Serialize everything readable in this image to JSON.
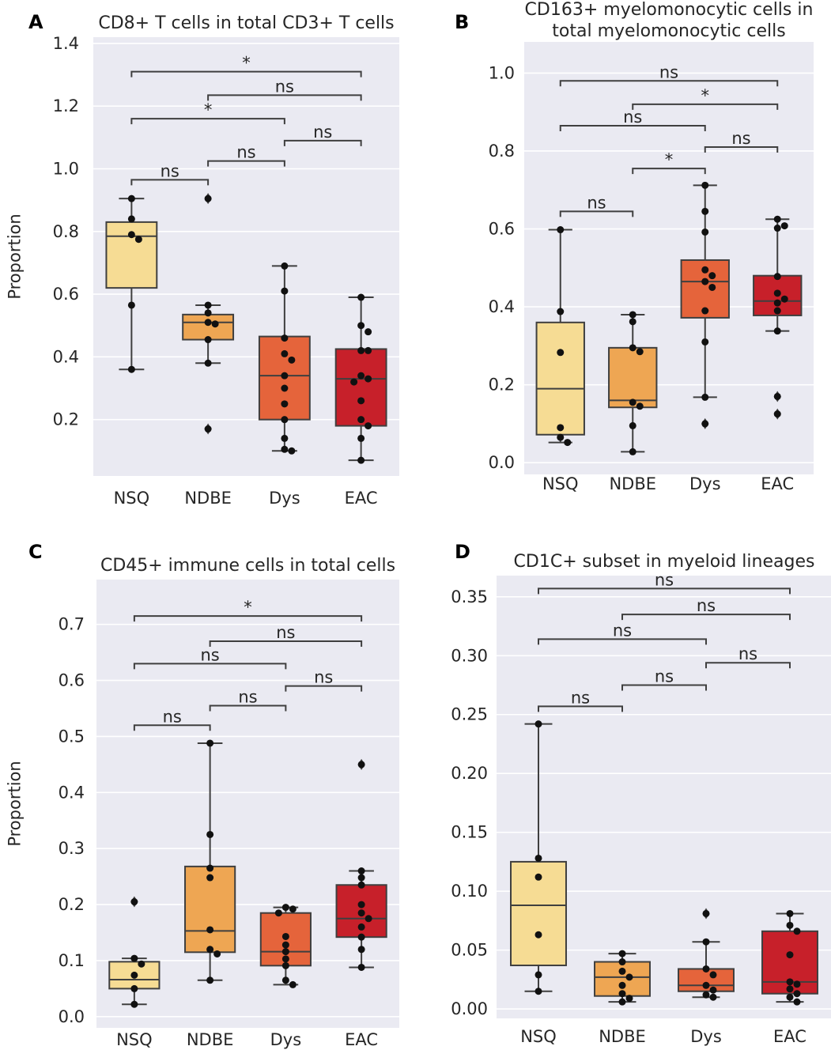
{
  "chart_data": [
    {
      "panel": "A",
      "type": "box",
      "title": [
        "CD8+ T cells in total CD3+ T cells"
      ],
      "ylabel": "Proportion",
      "xlabel": "",
      "ylim": [
        0.02,
        1.42
      ],
      "yticks": [
        0.2,
        0.4,
        0.6,
        0.8,
        1.0,
        1.2,
        1.4
      ],
      "ytick_labels": [
        "0.2",
        "0.4",
        "0.6",
        "0.8",
        "1.0",
        "1.2",
        "1.4"
      ],
      "categories": [
        "NSQ",
        "NDBE",
        "Dys",
        "EAC"
      ],
      "colors": [
        "#f6dc94",
        "#eea653",
        "#e5643b",
        "#c7202a"
      ],
      "boxes": [
        {
          "q1": 0.62,
          "median": 0.785,
          "q3": 0.83,
          "whislo": 0.36,
          "whishi": 0.905,
          "fliers": []
        },
        {
          "q1": 0.455,
          "median": 0.51,
          "q3": 0.535,
          "whislo": 0.38,
          "whishi": 0.565,
          "fliers": [
            0.905,
            0.17
          ]
        },
        {
          "q1": 0.2,
          "median": 0.34,
          "q3": 0.465,
          "whislo": 0.1,
          "whishi": 0.69,
          "fliers": []
        },
        {
          "q1": 0.18,
          "median": 0.33,
          "q3": 0.425,
          "whislo": 0.07,
          "whishi": 0.59,
          "fliers": []
        }
      ],
      "points": [
        [
          0.905,
          0.84,
          0.79,
          0.775,
          0.565,
          0.36
        ],
        [
          0.905,
          0.565,
          0.54,
          0.51,
          0.505,
          0.455,
          0.38,
          0.17
        ],
        [
          0.69,
          0.61,
          0.46,
          0.41,
          0.39,
          0.34,
          0.3,
          0.25,
          0.2,
          0.14,
          0.105,
          0.1
        ],
        [
          0.59,
          0.5,
          0.48,
          0.42,
          0.42,
          0.34,
          0.33,
          0.32,
          0.26,
          0.2,
          0.18,
          0.14,
          0.07
        ]
      ],
      "annotations": [
        {
          "from": 0,
          "to": 1,
          "y": 0.965,
          "label": "ns"
        },
        {
          "from": 1,
          "to": 2,
          "y": 1.025,
          "label": "ns"
        },
        {
          "from": 2,
          "to": 3,
          "y": 1.09,
          "label": "ns"
        },
        {
          "from": 0,
          "to": 2,
          "y": 1.16,
          "label": "*"
        },
        {
          "from": 1,
          "to": 3,
          "y": 1.235,
          "label": "ns"
        },
        {
          "from": 0,
          "to": 3,
          "y": 1.31,
          "label": "*"
        }
      ]
    },
    {
      "panel": "B",
      "type": "box",
      "title": [
        "CD163+ myelomonocytic cells in",
        "total myelomonocytic cells"
      ],
      "ylabel": "",
      "xlabel": "",
      "ylim": [
        -0.03,
        1.08
      ],
      "yticks": [
        0.0,
        0.2,
        0.4,
        0.6,
        0.8,
        1.0
      ],
      "ytick_labels": [
        "0.0",
        "0.2",
        "0.4",
        "0.6",
        "0.8",
        "1.0"
      ],
      "categories": [
        "NSQ",
        "NDBE",
        "Dys",
        "EAC"
      ],
      "colors": [
        "#f6dc94",
        "#eea653",
        "#e5643b",
        "#c7202a"
      ],
      "boxes": [
        {
          "q1": 0.072,
          "median": 0.19,
          "q3": 0.36,
          "whislo": 0.052,
          "whishi": 0.598,
          "fliers": []
        },
        {
          "q1": 0.142,
          "median": 0.16,
          "q3": 0.295,
          "whislo": 0.028,
          "whishi": 0.38,
          "fliers": []
        },
        {
          "q1": 0.372,
          "median": 0.465,
          "q3": 0.52,
          "whislo": 0.168,
          "whishi": 0.712,
          "fliers": [
            0.1
          ]
        },
        {
          "q1": 0.378,
          "median": 0.415,
          "q3": 0.48,
          "whislo": 0.338,
          "whishi": 0.625,
          "fliers": [
            0.17,
            0.125
          ]
        }
      ],
      "points": [
        [
          0.598,
          0.388,
          0.283,
          0.09,
          0.065,
          0.052
        ],
        [
          0.38,
          0.362,
          0.295,
          0.285,
          0.155,
          0.145,
          0.095,
          0.028
        ],
        [
          0.712,
          0.645,
          0.592,
          0.495,
          0.48,
          0.465,
          0.45,
          0.39,
          0.31,
          0.168,
          0.1
        ],
        [
          0.625,
          0.608,
          0.602,
          0.478,
          0.435,
          0.42,
          0.41,
          0.39,
          0.338,
          0.17,
          0.125
        ]
      ],
      "annotations": [
        {
          "from": 0,
          "to": 1,
          "y": 0.645,
          "label": "ns"
        },
        {
          "from": 1,
          "to": 2,
          "y": 0.755,
          "label": "*"
        },
        {
          "from": 2,
          "to": 3,
          "y": 0.81,
          "label": "ns"
        },
        {
          "from": 0,
          "to": 2,
          "y": 0.865,
          "label": "ns"
        },
        {
          "from": 1,
          "to": 3,
          "y": 0.92,
          "label": "*"
        },
        {
          "from": 0,
          "to": 3,
          "y": 0.98,
          "label": "ns"
        }
      ]
    },
    {
      "panel": "C",
      "type": "box",
      "title": [
        "CD45+ immune cells in total cells"
      ],
      "ylabel": "Proportion",
      "xlabel": "",
      "ylim": [
        -0.02,
        0.78
      ],
      "yticks": [
        0.0,
        0.1,
        0.2,
        0.3,
        0.4,
        0.5,
        0.6,
        0.7
      ],
      "ytick_labels": [
        "0.0",
        "0.1",
        "0.2",
        "0.3",
        "0.4",
        "0.5",
        "0.6",
        "0.7"
      ],
      "categories": [
        "NSQ",
        "NDBE",
        "Dys",
        "EAC"
      ],
      "colors": [
        "#f6dc94",
        "#eea653",
        "#e5643b",
        "#c7202a"
      ],
      "boxes": [
        {
          "q1": 0.05,
          "median": 0.066,
          "q3": 0.098,
          "whislo": 0.022,
          "whishi": 0.104,
          "fliers": [
            0.205
          ]
        },
        {
          "q1": 0.115,
          "median": 0.153,
          "q3": 0.268,
          "whislo": 0.065,
          "whishi": 0.488,
          "fliers": []
        },
        {
          "q1": 0.091,
          "median": 0.116,
          "q3": 0.185,
          "whislo": 0.057,
          "whishi": 0.195,
          "fliers": []
        },
        {
          "q1": 0.142,
          "median": 0.175,
          "q3": 0.235,
          "whislo": 0.088,
          "whishi": 0.26,
          "fliers": [
            0.45
          ]
        }
      ],
      "points": [
        [
          0.205,
          0.104,
          0.094,
          0.074,
          0.05,
          0.022
        ],
        [
          0.488,
          0.325,
          0.265,
          0.248,
          0.155,
          0.12,
          0.112,
          0.065
        ],
        [
          0.195,
          0.192,
          0.185,
          0.143,
          0.128,
          0.116,
          0.103,
          0.091,
          0.065,
          0.057
        ],
        [
          0.45,
          0.26,
          0.248,
          0.235,
          0.2,
          0.185,
          0.175,
          0.16,
          0.142,
          0.12,
          0.088
        ]
      ],
      "annotations": [
        {
          "from": 0,
          "to": 1,
          "y": 0.52,
          "label": "ns"
        },
        {
          "from": 1,
          "to": 2,
          "y": 0.555,
          "label": "ns"
        },
        {
          "from": 2,
          "to": 3,
          "y": 0.59,
          "label": "ns"
        },
        {
          "from": 0,
          "to": 2,
          "y": 0.63,
          "label": "ns"
        },
        {
          "from": 1,
          "to": 3,
          "y": 0.67,
          "label": "ns"
        },
        {
          "from": 0,
          "to": 3,
          "y": 0.715,
          "label": "*"
        }
      ]
    },
    {
      "panel": "D",
      "type": "box",
      "title": [
        "CD1C+ subset in myeloid lineages"
      ],
      "ylabel": "",
      "xlabel": "",
      "ylim": [
        -0.008,
        0.368
      ],
      "yticks": [
        0.0,
        0.05,
        0.1,
        0.15,
        0.2,
        0.25,
        0.3,
        0.35
      ],
      "ytick_labels": [
        "0.00",
        "0.05",
        "0.10",
        "0.15",
        "0.20",
        "0.25",
        "0.30",
        "0.35"
      ],
      "categories": [
        "NSQ",
        "NDBE",
        "Dys",
        "EAC"
      ],
      "colors": [
        "#f6dc94",
        "#eea653",
        "#e5643b",
        "#c7202a"
      ],
      "boxes": [
        {
          "q1": 0.037,
          "median": 0.088,
          "q3": 0.125,
          "whislo": 0.015,
          "whishi": 0.242,
          "fliers": []
        },
        {
          "q1": 0.011,
          "median": 0.027,
          "q3": 0.04,
          "whislo": 0.006,
          "whishi": 0.047,
          "fliers": []
        },
        {
          "q1": 0.015,
          "median": 0.02,
          "q3": 0.034,
          "whislo": 0.01,
          "whishi": 0.057,
          "fliers": [
            0.081
          ]
        },
        {
          "q1": 0.013,
          "median": 0.023,
          "q3": 0.066,
          "whislo": 0.006,
          "whishi": 0.081,
          "fliers": []
        }
      ],
      "points": [
        [
          0.242,
          0.128,
          0.112,
          0.063,
          0.029,
          0.015
        ],
        [
          0.047,
          0.04,
          0.032,
          0.027,
          0.02,
          0.013,
          0.009,
          0.006
        ],
        [
          0.081,
          0.057,
          0.034,
          0.029,
          0.02,
          0.016,
          0.012,
          0.01
        ],
        [
          0.081,
          0.071,
          0.066,
          0.046,
          0.023,
          0.021,
          0.017,
          0.013,
          0.01,
          0.006
        ]
      ],
      "annotations": [
        {
          "from": 0,
          "to": 1,
          "y": 0.257,
          "label": "ns"
        },
        {
          "from": 1,
          "to": 2,
          "y": 0.275,
          "label": "ns"
        },
        {
          "from": 2,
          "to": 3,
          "y": 0.294,
          "label": "ns"
        },
        {
          "from": 0,
          "to": 2,
          "y": 0.314,
          "label": "ns"
        },
        {
          "from": 1,
          "to": 3,
          "y": 0.335,
          "label": "ns"
        },
        {
          "from": 0,
          "to": 3,
          "y": 0.357,
          "label": "ns"
        }
      ]
    }
  ]
}
